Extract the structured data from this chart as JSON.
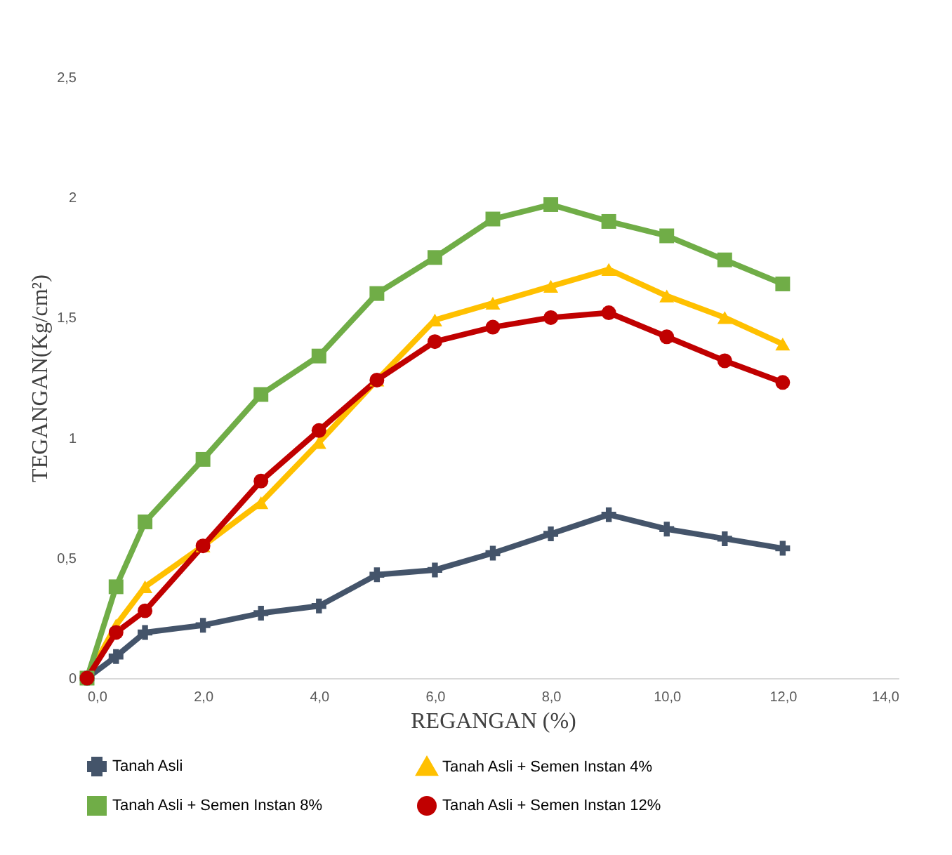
{
  "chart_data": {
    "type": "line",
    "xlabel": "REGANGAN (%)",
    "ylabel": "TEGANGAN(Kg/cm²)",
    "x": [
      0,
      0.5,
      1,
      2,
      3,
      4,
      5,
      6,
      7,
      8,
      9,
      10,
      11,
      12
    ],
    "series": [
      {
        "name": "Tanah Asli",
        "color": "#44546a",
        "marker": "cross",
        "values": [
          0,
          0.09,
          0.19,
          0.22,
          0.27,
          0.3,
          0.43,
          0.45,
          0.52,
          0.6,
          0.68,
          0.62,
          0.58,
          0.54
        ]
      },
      {
        "name": "Tanah Asli + Semen Instan 4%",
        "color": "#ffc000",
        "marker": "triangle",
        "values": [
          0,
          0.22,
          0.38,
          0.55,
          0.73,
          0.98,
          1.24,
          1.49,
          1.56,
          1.63,
          1.7,
          1.59,
          1.5,
          1.39
        ]
      },
      {
        "name": "Tanah Asli + Semen Instan 8%",
        "color": "#70ad47",
        "marker": "square",
        "values": [
          0,
          0.38,
          0.65,
          0.91,
          1.18,
          1.34,
          1.6,
          1.75,
          1.91,
          1.97,
          1.9,
          1.84,
          1.74,
          1.64
        ]
      },
      {
        "name": "Tanah Asli + Semen Instan 12%",
        "color": "#c00000",
        "marker": "circle",
        "values": [
          0,
          0.19,
          0.28,
          0.55,
          0.82,
          1.03,
          1.24,
          1.4,
          1.46,
          1.5,
          1.52,
          1.42,
          1.32,
          1.23
        ]
      }
    ],
    "xlim": [
      0,
      14
    ],
    "xticks": [
      {
        "value": 0,
        "label": "0,0"
      },
      {
        "value": 2,
        "label": "2,0"
      },
      {
        "value": 4,
        "label": "4,0"
      },
      {
        "value": 6,
        "label": "6,0"
      },
      {
        "value": 8,
        "label": "8,0"
      },
      {
        "value": 10,
        "label": "10,0"
      },
      {
        "value": 12,
        "label": "12,0"
      },
      {
        "value": 14,
        "label": "14,0"
      }
    ],
    "ylim": [
      0,
      2.5
    ],
    "yticks": [
      0,
      {
        "value": 0.5,
        "label": "0,5"
      },
      1,
      {
        "value": 1.5,
        "label": "1,5"
      },
      2,
      {
        "value": 2.5,
        "label": "2,5"
      }
    ],
    "grid": false,
    "legend": "bottom",
    "line_style": "solid"
  }
}
